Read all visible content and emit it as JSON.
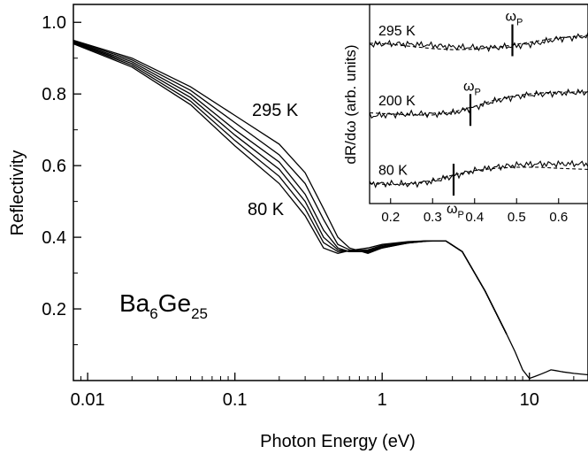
{
  "chart_data": [
    {
      "type": "line",
      "xlabel": "Photon Energy (eV)",
      "ylabel": "Reflectivity",
      "x_scale": "log",
      "xlim": [
        0.008,
        25
      ],
      "ylim": [
        0.0,
        1.05
      ],
      "x_ticks": [
        0.01,
        0.1,
        1,
        10
      ],
      "x_tick_labels": [
        "0.01",
        "0.1",
        "1",
        "10"
      ],
      "y_ticks": [
        0.2,
        0.4,
        0.6,
        0.8,
        1.0
      ],
      "y_tick_labels": [
        "0.2",
        "0.4",
        "0.6",
        "0.8",
        "1.0"
      ],
      "annotations": {
        "top_curve_label": "295 K",
        "bottom_curve_label": "80 K",
        "compound": {
          "base1": "Ba",
          "sub1": "6",
          "base2": "Ge",
          "sub2": "25"
        }
      },
      "temperature_curves": [
        {
          "x": [
            0.008,
            0.02,
            0.05,
            0.1,
            0.2,
            0.3,
            0.4,
            0.5,
            0.6,
            0.8,
            1.0,
            1.5,
            2.0,
            2.7,
            3.5,
            5.0,
            7.0
          ],
          "y": [
            0.95,
            0.9,
            0.82,
            0.74,
            0.66,
            0.58,
            0.48,
            0.4,
            0.37,
            0.355,
            0.37,
            0.385,
            0.39,
            0.39,
            0.36,
            0.25,
            0.13
          ]
        },
        {
          "x": [
            0.008,
            0.02,
            0.05,
            0.1,
            0.2,
            0.3,
            0.4,
            0.5,
            0.6,
            0.8,
            1.0,
            1.5,
            2.0,
            2.7,
            3.5,
            5.0,
            7.0
          ],
          "y": [
            0.948,
            0.895,
            0.81,
            0.72,
            0.63,
            0.55,
            0.45,
            0.38,
            0.365,
            0.358,
            0.37,
            0.384,
            0.389,
            0.39,
            0.36,
            0.25,
            0.13
          ]
        },
        {
          "x": [
            0.008,
            0.02,
            0.05,
            0.1,
            0.2,
            0.3,
            0.4,
            0.5,
            0.6,
            0.8,
            1.0,
            1.5,
            2.0,
            2.7,
            3.5,
            5.0,
            7.0
          ],
          "y": [
            0.946,
            0.89,
            0.8,
            0.7,
            0.61,
            0.52,
            0.42,
            0.37,
            0.36,
            0.36,
            0.372,
            0.384,
            0.389,
            0.39,
            0.36,
            0.25,
            0.13
          ]
        },
        {
          "x": [
            0.008,
            0.02,
            0.05,
            0.1,
            0.2,
            0.3,
            0.4,
            0.5,
            0.6,
            0.8,
            1.0,
            1.5,
            2.0,
            2.7,
            3.5,
            5.0,
            7.0
          ],
          "y": [
            0.944,
            0.885,
            0.79,
            0.685,
            0.59,
            0.5,
            0.4,
            0.365,
            0.36,
            0.362,
            0.374,
            0.385,
            0.389,
            0.39,
            0.36,
            0.25,
            0.13
          ]
        },
        {
          "x": [
            0.008,
            0.02,
            0.05,
            0.1,
            0.2,
            0.3,
            0.4,
            0.5,
            0.6,
            0.8,
            1.0,
            1.5,
            2.0,
            2.7,
            3.5,
            5.0,
            7.0
          ],
          "y": [
            0.942,
            0.88,
            0.78,
            0.67,
            0.57,
            0.48,
            0.385,
            0.36,
            0.362,
            0.365,
            0.377,
            0.386,
            0.39,
            0.39,
            0.36,
            0.25,
            0.13
          ]
        },
        {
          "x": [
            0.008,
            0.02,
            0.05,
            0.1,
            0.2,
            0.3,
            0.4,
            0.5,
            0.6,
            0.8,
            1.0,
            1.5,
            2.0,
            2.7,
            3.5,
            5.0,
            7.0
          ],
          "y": [
            0.94,
            0.875,
            0.77,
            0.655,
            0.55,
            0.46,
            0.37,
            0.355,
            0.363,
            0.37,
            0.38,
            0.388,
            0.39,
            0.39,
            0.36,
            0.25,
            0.13
          ]
        }
      ],
      "high_energy_tail": {
        "x": [
          7.0,
          8.0,
          9.0,
          10.0,
          11.0,
          12.0,
          13.0,
          14.0,
          15.0,
          17.0,
          20.0,
          25.0
        ],
        "y": [
          0.13,
          0.08,
          0.03,
          0.006,
          0.012,
          0.018,
          0.024,
          0.03,
          0.028,
          0.024,
          0.02,
          0.016
        ]
      }
    },
    {
      "type": "line",
      "xlabel": "",
      "ylabel": "dR/dω (arb. units)",
      "xlim": [
        0.15,
        0.67
      ],
      "x_ticks": [
        0.2,
        0.3,
        0.4,
        0.5,
        0.6
      ],
      "x_tick_labels": [
        "0.2",
        "0.3",
        "0.4",
        "0.5",
        "0.6"
      ],
      "plasma_label": {
        "base": "ω",
        "sub": "P"
      },
      "series": [
        {
          "name": "295 K",
          "offset": 0.8,
          "plasma_energy": 0.49,
          "x": [
            0.15,
            0.2,
            0.25,
            0.3,
            0.35,
            0.4,
            0.45,
            0.5,
            0.55,
            0.6,
            0.67
          ],
          "y": [
            0.0,
            0.005,
            0.0,
            -0.01,
            -0.025,
            -0.03,
            -0.03,
            -0.015,
            0.01,
            0.05,
            0.075
          ],
          "fit_y": [
            0.01,
            0.0,
            -0.02,
            -0.04,
            -0.05,
            -0.045,
            -0.03,
            0.0,
            0.03,
            0.06,
            0.08
          ]
        },
        {
          "name": "200 K",
          "offset": 0.45,
          "plasma_energy": 0.39,
          "x": [
            0.15,
            0.2,
            0.25,
            0.3,
            0.35,
            0.4,
            0.45,
            0.5,
            0.55,
            0.6,
            0.67
          ],
          "y": [
            -0.02,
            -0.005,
            0.0,
            0.0,
            0.01,
            0.06,
            0.12,
            0.16,
            0.18,
            0.19,
            0.2
          ],
          "fit_y": [
            0.01,
            0.0,
            -0.01,
            -0.01,
            0.02,
            0.07,
            0.13,
            0.17,
            0.19,
            0.2,
            0.2
          ]
        },
        {
          "name": "80 K",
          "offset": 0.1,
          "plasma_energy": 0.35,
          "x": [
            0.15,
            0.2,
            0.25,
            0.3,
            0.35,
            0.4,
            0.45,
            0.5,
            0.55,
            0.6,
            0.67
          ],
          "y": [
            0.0,
            0.0,
            -0.005,
            0.02,
            0.07,
            0.12,
            0.15,
            0.17,
            0.18,
            0.18,
            0.18
          ],
          "fit_y": [
            0.0,
            -0.01,
            0.0,
            0.03,
            0.08,
            0.12,
            0.14,
            0.15,
            0.15,
            0.14,
            0.13
          ]
        }
      ]
    }
  ]
}
